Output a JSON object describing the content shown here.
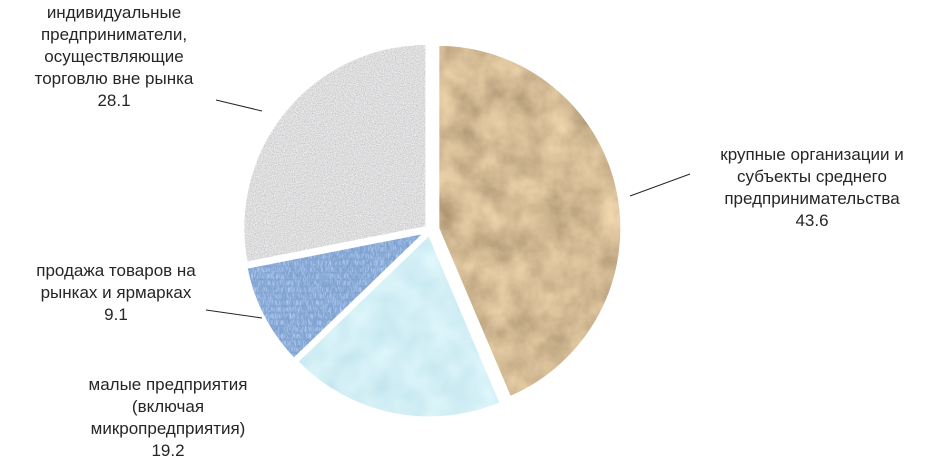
{
  "chart_data": {
    "type": "pie",
    "title": "",
    "slices": [
      {
        "label": [
          "крупные организации и",
          "субъекты среднего",
          "предпринимательства"
        ],
        "value": 43.6,
        "value_label": "43.6",
        "texture": "crumpled-kraft-paper",
        "color": "#b8925f"
      },
      {
        "label": [
          "малые предприятия",
          "(включая",
          "микропредприятия)"
        ],
        "value": 19.2,
        "value_label": "19.2",
        "texture": "water-droplets",
        "color": "#a6dce8"
      },
      {
        "label": [
          "продажа товаров на",
          "рынках и ярмарках"
        ],
        "value": 9.1,
        "value_label": "9.1",
        "texture": "blue-denim",
        "color": "#4a6fb8"
      },
      {
        "label": [
          "индивидуальные",
          "предприниматели,",
          "осуществляющие",
          "торговлю вне рынка"
        ],
        "value": 28.1,
        "value_label": "28.1",
        "texture": "gray-granite",
        "color": "#bdbdbd"
      }
    ],
    "legend": "none",
    "labels": "outside-with-leader-lines"
  }
}
